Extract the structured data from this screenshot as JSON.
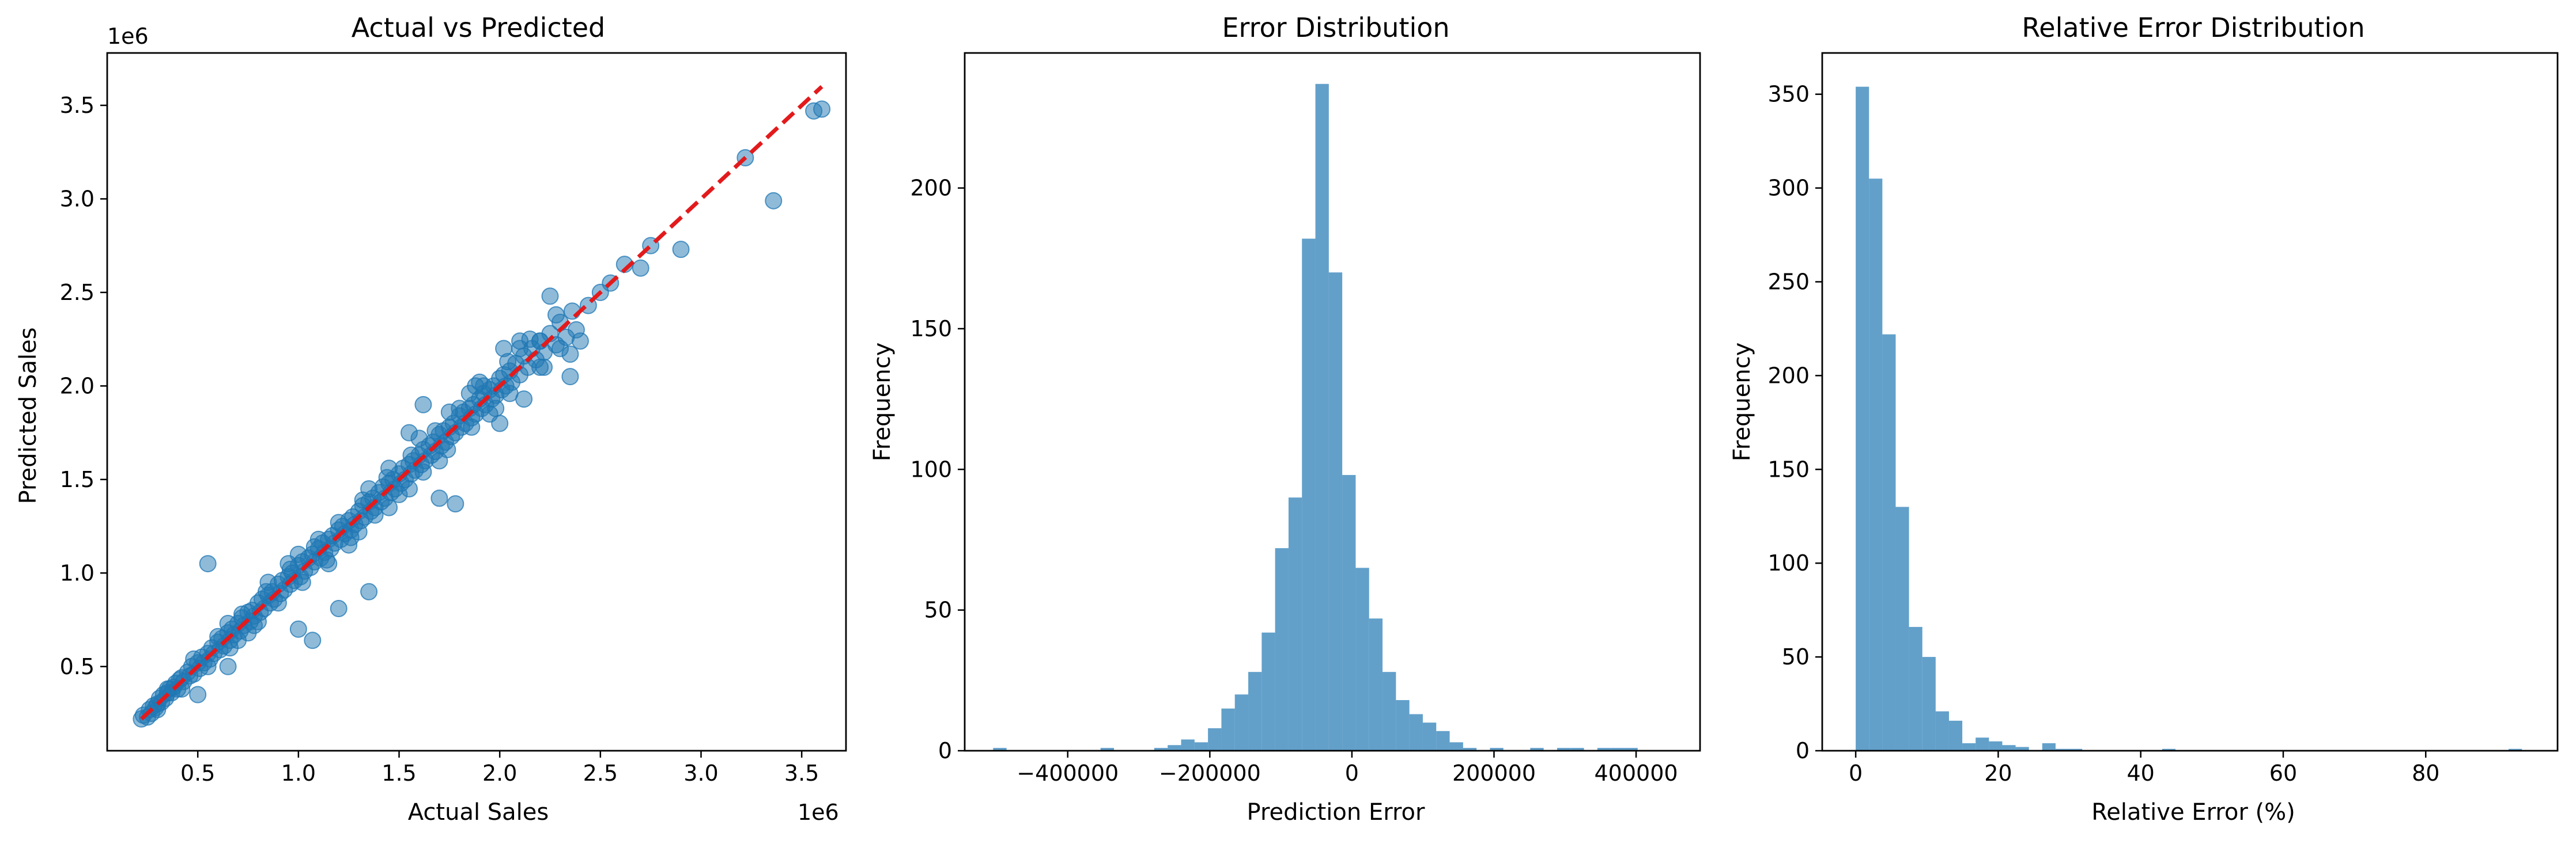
{
  "chart_data": [
    {
      "type": "scatter",
      "title": "Actual vs Predicted",
      "xlabel": "Actual Sales",
      "ylabel": "Predicted Sales",
      "x_offset_label": "1e6",
      "y_offset_label": "1e6",
      "xlim": [
        0.05,
        3.72
      ],
      "ylim": [
        0.05,
        3.78
      ],
      "xticks": [
        0.5,
        1.0,
        1.5,
        2.0,
        2.5,
        3.0,
        3.5
      ],
      "yticks": [
        0.5,
        1.0,
        1.5,
        2.0,
        2.5,
        3.0,
        3.5
      ],
      "xtick_labels": [
        "0.5",
        "1.0",
        "1.5",
        "2.0",
        "2.5",
        "3.0",
        "3.5"
      ],
      "ytick_labels": [
        "0.5",
        "1.0",
        "1.5",
        "2.0",
        "2.5",
        "3.0",
        "3.5"
      ],
      "point_color": "#1f77b4",
      "point_alpha": 0.5,
      "reference_line": {
        "x": [
          0.22,
          3.6
        ],
        "y": [
          0.22,
          3.6
        ],
        "color": "#e31a1c",
        "style": "dashed"
      },
      "points": [
        [
          0.22,
          0.22
        ],
        [
          0.23,
          0.24
        ],
        [
          0.25,
          0.23
        ],
        [
          0.26,
          0.27
        ],
        [
          0.27,
          0.25
        ],
        [
          0.28,
          0.29
        ],
        [
          0.29,
          0.28
        ],
        [
          0.3,
          0.3
        ],
        [
          0.31,
          0.33
        ],
        [
          0.32,
          0.31
        ],
        [
          0.33,
          0.35
        ],
        [
          0.34,
          0.33
        ],
        [
          0.35,
          0.36
        ],
        [
          0.36,
          0.38
        ],
        [
          0.37,
          0.36
        ],
        [
          0.38,
          0.39
        ],
        [
          0.39,
          0.41
        ],
        [
          0.4,
          0.38
        ],
        [
          0.41,
          0.43
        ],
        [
          0.42,
          0.44
        ],
        [
          0.43,
          0.42
        ],
        [
          0.45,
          0.47
        ],
        [
          0.46,
          0.45
        ],
        [
          0.47,
          0.5
        ],
        [
          0.48,
          0.46
        ],
        [
          0.5,
          0.52
        ],
        [
          0.51,
          0.49
        ],
        [
          0.52,
          0.55
        ],
        [
          0.53,
          0.52
        ],
        [
          0.55,
          0.57
        ],
        [
          0.56,
          0.54
        ],
        [
          0.57,
          0.6
        ],
        [
          0.58,
          0.57
        ],
        [
          0.6,
          0.63
        ],
        [
          0.61,
          0.59
        ],
        [
          0.62,
          0.65
        ],
        [
          0.63,
          0.61
        ],
        [
          0.65,
          0.68
        ],
        [
          0.66,
          0.64
        ],
        [
          0.67,
          0.7
        ],
        [
          0.68,
          0.67
        ],
        [
          0.7,
          0.73
        ],
        [
          0.71,
          0.69
        ],
        [
          0.72,
          0.76
        ],
        [
          0.73,
          0.72
        ],
        [
          0.75,
          0.79
        ],
        [
          0.76,
          0.74
        ],
        [
          0.77,
          0.8
        ],
        [
          0.78,
          0.77
        ],
        [
          0.8,
          0.84
        ],
        [
          0.81,
          0.79
        ],
        [
          0.82,
          0.86
        ],
        [
          0.83,
          0.81
        ],
        [
          0.85,
          0.88
        ],
        [
          0.86,
          0.84
        ],
        [
          0.87,
          0.9
        ],
        [
          0.88,
          0.86
        ],
        [
          0.9,
          0.94
        ],
        [
          0.91,
          0.89
        ],
        [
          0.92,
          0.96
        ],
        [
          0.93,
          0.91
        ],
        [
          0.95,
          0.98
        ],
        [
          0.96,
          0.94
        ],
        [
          0.97,
          1.0
        ],
        [
          0.98,
          0.96
        ],
        [
          1.0,
          1.04
        ],
        [
          1.01,
          0.98
        ],
        [
          1.02,
          1.06
        ],
        [
          1.03,
          1.01
        ],
        [
          1.05,
          1.08
        ],
        [
          1.06,
          1.03
        ],
        [
          1.07,
          1.1
        ],
        [
          1.08,
          1.06
        ],
        [
          1.1,
          1.13
        ],
        [
          1.11,
          1.08
        ],
        [
          1.12,
          1.16
        ],
        [
          1.13,
          1.11
        ],
        [
          1.15,
          1.18
        ],
        [
          1.16,
          1.13
        ],
        [
          1.17,
          1.2
        ],
        [
          1.18,
          1.16
        ],
        [
          1.2,
          1.23
        ],
        [
          1.21,
          1.18
        ],
        [
          1.22,
          1.25
        ],
        [
          1.23,
          1.21
        ],
        [
          1.25,
          1.28
        ],
        [
          1.26,
          1.23
        ],
        [
          1.27,
          1.3
        ],
        [
          1.28,
          1.26
        ],
        [
          1.3,
          1.33
        ],
        [
          1.31,
          1.28
        ],
        [
          1.32,
          1.36
        ],
        [
          1.33,
          1.3
        ],
        [
          1.35,
          1.38
        ],
        [
          1.36,
          1.33
        ],
        [
          1.37,
          1.4
        ],
        [
          1.38,
          1.35
        ],
        [
          1.4,
          1.43
        ],
        [
          1.41,
          1.38
        ],
        [
          1.42,
          1.46
        ],
        [
          1.43,
          1.4
        ],
        [
          1.45,
          1.48
        ],
        [
          1.46,
          1.43
        ],
        [
          1.47,
          1.5
        ],
        [
          1.48,
          1.45
        ],
        [
          1.5,
          1.53
        ],
        [
          1.51,
          1.48
        ],
        [
          1.52,
          1.56
        ],
        [
          1.53,
          1.5
        ],
        [
          1.55,
          1.58
        ],
        [
          1.56,
          1.53
        ],
        [
          1.57,
          1.6
        ],
        [
          1.58,
          1.55
        ],
        [
          1.6,
          1.63
        ],
        [
          1.61,
          1.58
        ],
        [
          1.62,
          1.66
        ],
        [
          1.63,
          1.6
        ],
        [
          1.65,
          1.68
        ],
        [
          1.66,
          1.63
        ],
        [
          1.67,
          1.7
        ],
        [
          1.68,
          1.65
        ],
        [
          1.7,
          1.74
        ],
        [
          1.71,
          1.68
        ],
        [
          1.72,
          1.76
        ],
        [
          1.73,
          1.7
        ],
        [
          1.75,
          1.78
        ],
        [
          1.76,
          1.73
        ],
        [
          1.77,
          1.8
        ],
        [
          1.78,
          1.75
        ],
        [
          1.8,
          1.84
        ],
        [
          1.81,
          1.78
        ],
        [
          1.82,
          1.86
        ],
        [
          1.83,
          1.8
        ],
        [
          1.85,
          1.88
        ],
        [
          1.86,
          1.83
        ],
        [
          1.87,
          1.9
        ],
        [
          1.88,
          1.85
        ],
        [
          1.9,
          1.93
        ],
        [
          1.91,
          1.88
        ],
        [
          1.92,
          1.96
        ],
        [
          1.93,
          1.9
        ],
        [
          1.95,
          1.98
        ],
        [
          1.96,
          1.93
        ],
        [
          1.97,
          2.0
        ],
        [
          1.98,
          1.95
        ],
        [
          2.0,
          2.04
        ],
        [
          2.01,
          1.98
        ],
        [
          2.02,
          2.06
        ],
        [
          2.03,
          2.0
        ],
        [
          2.05,
          2.08
        ],
        [
          2.06,
          2.02
        ],
        [
          2.08,
          2.12
        ],
        [
          2.1,
          2.06
        ],
        [
          2.12,
          2.16
        ],
        [
          2.14,
          2.1
        ],
        [
          2.16,
          2.2
        ],
        [
          2.18,
          2.14
        ],
        [
          2.2,
          2.24
        ],
        [
          2.22,
          2.18
        ],
        [
          2.25,
          2.28
        ],
        [
          2.28,
          2.22
        ],
        [
          2.3,
          2.34
        ],
        [
          2.33,
          2.26
        ],
        [
          2.36,
          2.4
        ],
        [
          2.38,
          2.3
        ],
        [
          0.3,
          0.27
        ],
        [
          0.35,
          0.38
        ],
        [
          0.42,
          0.38
        ],
        [
          0.48,
          0.54
        ],
        [
          0.55,
          0.5
        ],
        [
          0.6,
          0.66
        ],
        [
          0.66,
          0.6
        ],
        [
          0.72,
          0.78
        ],
        [
          0.78,
          0.72
        ],
        [
          0.84,
          0.9
        ],
        [
          0.9,
          0.84
        ],
        [
          0.96,
          1.02
        ],
        [
          1.02,
          0.95
        ],
        [
          1.08,
          1.14
        ],
        [
          1.14,
          1.07
        ],
        [
          1.2,
          1.27
        ],
        [
          1.26,
          1.19
        ],
        [
          1.32,
          1.39
        ],
        [
          1.38,
          1.31
        ],
        [
          1.44,
          1.51
        ],
        [
          1.5,
          1.42
        ],
        [
          1.56,
          1.63
        ],
        [
          1.62,
          1.54
        ],
        [
          1.68,
          1.76
        ],
        [
          1.74,
          1.66
        ],
        [
          1.8,
          1.88
        ],
        [
          1.86,
          1.78
        ],
        [
          1.92,
          2.0
        ],
        [
          1.98,
          1.88
        ],
        [
          2.04,
          2.13
        ],
        [
          1.0,
          1.1
        ],
        [
          1.15,
          1.05
        ],
        [
          1.35,
          1.45
        ],
        [
          1.55,
          1.45
        ],
        [
          1.75,
          1.86
        ],
        [
          1.95,
          1.85
        ],
        [
          1.7,
          1.6
        ],
        [
          1.85,
          1.96
        ],
        [
          2.05,
          1.96
        ],
        [
          2.15,
          2.25
        ],
        [
          1.45,
          1.56
        ],
        [
          1.25,
          1.15
        ],
        [
          0.85,
          0.95
        ],
        [
          0.75,
          0.68
        ],
        [
          0.65,
          0.73
        ],
        [
          1.1,
          1.18
        ],
        [
          1.6,
          1.72
        ],
        [
          1.9,
          2.02
        ],
        [
          2.1,
          2.2
        ],
        [
          2.2,
          2.1
        ],
        [
          0.55,
          1.05
        ],
        [
          0.5,
          0.35
        ],
        [
          0.65,
          0.5
        ],
        [
          1.0,
          0.7
        ],
        [
          1.07,
          0.64
        ],
        [
          1.2,
          0.81
        ],
        [
          1.35,
          0.9
        ],
        [
          1.55,
          1.75
        ],
        [
          1.62,
          1.9
        ],
        [
          1.78,
          1.37
        ],
        [
          1.7,
          1.4
        ],
        [
          2.0,
          1.8
        ],
        [
          2.12,
          1.93
        ],
        [
          2.22,
          2.1
        ],
        [
          2.35,
          2.05
        ],
        [
          2.35,
          2.17
        ],
        [
          2.1,
          2.24
        ],
        [
          2.2,
          2.24
        ],
        [
          2.28,
          2.38
        ],
        [
          2.25,
          2.48
        ],
        [
          2.4,
          2.24
        ],
        [
          2.55,
          2.55
        ],
        [
          2.62,
          2.65
        ],
        [
          2.7,
          2.63
        ],
        [
          2.75,
          2.75
        ],
        [
          2.9,
          2.73
        ],
        [
          3.22,
          3.22
        ],
        [
          3.36,
          2.99
        ],
        [
          3.56,
          3.47
        ],
        [
          3.6,
          3.48
        ],
        [
          2.44,
          2.43
        ],
        [
          2.5,
          2.5
        ],
        [
          2.3,
          2.2
        ],
        [
          1.45,
          1.35
        ],
        [
          1.3,
          1.22
        ],
        [
          0.95,
          1.05
        ],
        [
          0.8,
          0.74
        ],
        [
          0.7,
          0.64
        ],
        [
          1.88,
          2.0
        ],
        [
          2.02,
          2.2
        ]
      ]
    },
    {
      "type": "bar",
      "subtype": "histogram",
      "title": "Error Distribution",
      "xlabel": "Prediction Error",
      "ylabel": "Frequency",
      "xlim": [
        -545000,
        490000
      ],
      "ylim": [
        0,
        248
      ],
      "xticks": [
        -400000,
        -200000,
        0,
        200000,
        400000
      ],
      "xtick_labels": [
        "−400000",
        "−200000",
        "0",
        "200000",
        "400000"
      ],
      "yticks": [
        0,
        50,
        100,
        150,
        200
      ],
      "ytick_labels": [
        "0",
        "50",
        "100",
        "150",
        "200"
      ],
      "bar_color": "#1f77b4",
      "bar_alpha": 0.7,
      "bin_start": -505000,
      "bin_width": 18900,
      "counts": [
        1,
        0,
        0,
        0,
        0,
        0,
        0,
        0,
        1,
        0,
        0,
        0,
        1,
        2,
        4,
        3,
        8,
        15,
        20,
        28,
        42,
        72,
        90,
        182,
        237,
        170,
        98,
        65,
        47,
        28,
        18,
        13,
        10,
        7,
        3,
        1,
        0,
        1,
        0,
        0,
        1,
        0,
        1,
        1,
        0,
        1,
        1,
        1
      ]
    },
    {
      "type": "bar",
      "subtype": "histogram",
      "title": "Relative Error Distribution",
      "xlabel": "Relative Error (%)",
      "ylabel": "Frequency",
      "xlim": [
        -4.7,
        98.5
      ],
      "ylim": [
        0,
        372
      ],
      "xticks": [
        0,
        20,
        40,
        60,
        80
      ],
      "xtick_labels": [
        "0",
        "20",
        "40",
        "60",
        "80"
      ],
      "yticks": [
        0,
        50,
        100,
        150,
        200,
        250,
        300,
        350
      ],
      "ytick_labels": [
        "0",
        "50",
        "100",
        "150",
        "200",
        "250",
        "300",
        "350"
      ],
      "bar_color": "#1f77b4",
      "bar_alpha": 0.7,
      "bin_start": 0,
      "bin_width": 1.87,
      "counts": [
        354,
        305,
        222,
        130,
        66,
        50,
        21,
        16,
        4,
        7,
        5,
        3,
        2,
        0,
        4,
        1,
        1,
        0,
        0,
        0,
        0,
        0,
        0,
        1,
        0,
        0,
        0,
        0,
        0,
        0,
        0,
        0,
        0,
        0,
        0,
        0,
        0,
        0,
        0,
        0,
        0,
        0,
        0,
        0,
        0,
        0,
        0,
        0,
        0,
        1
      ]
    }
  ]
}
